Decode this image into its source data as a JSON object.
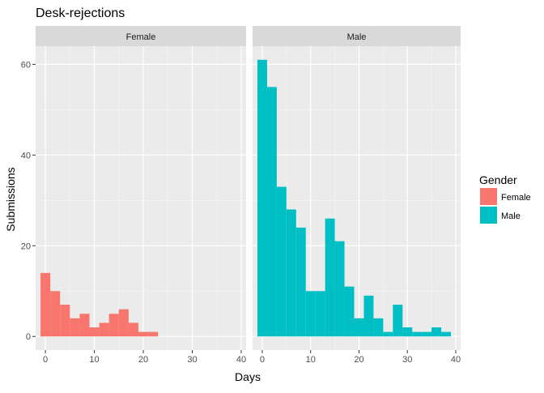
{
  "chart_data": {
    "type": "bar",
    "title": "Desk-rejections",
    "xlabel": "Days",
    "ylabel": "Submissions",
    "xlim": [
      -2,
      41
    ],
    "ylim": [
      -3,
      64
    ],
    "x_ticks": [
      0,
      10,
      20,
      30,
      40
    ],
    "y_ticks": [
      0,
      20,
      40,
      60
    ],
    "bin_width": 2,
    "grid": true,
    "legend": {
      "title": "Gender",
      "position": "right",
      "entries": [
        {
          "label": "Female",
          "color": "#F8766D"
        },
        {
          "label": "Male",
          "color": "#00BFC4"
        }
      ]
    },
    "facets": [
      {
        "name": "Female",
        "color": "#F8766D",
        "bins": [
          {
            "x": 0,
            "count": 14
          },
          {
            "x": 2,
            "count": 10
          },
          {
            "x": 4,
            "count": 7
          },
          {
            "x": 6,
            "count": 4
          },
          {
            "x": 8,
            "count": 5
          },
          {
            "x": 10,
            "count": 2
          },
          {
            "x": 12,
            "count": 3
          },
          {
            "x": 14,
            "count": 5
          },
          {
            "x": 16,
            "count": 6
          },
          {
            "x": 18,
            "count": 3
          },
          {
            "x": 20,
            "count": 1
          },
          {
            "x": 22,
            "count": 1
          }
        ]
      },
      {
        "name": "Male",
        "color": "#00BFC4",
        "bins": [
          {
            "x": 0,
            "count": 61
          },
          {
            "x": 2,
            "count": 55
          },
          {
            "x": 4,
            "count": 33
          },
          {
            "x": 6,
            "count": 28
          },
          {
            "x": 8,
            "count": 24
          },
          {
            "x": 10,
            "count": 10
          },
          {
            "x": 12,
            "count": 10
          },
          {
            "x": 14,
            "count": 26
          },
          {
            "x": 16,
            "count": 21
          },
          {
            "x": 18,
            "count": 11
          },
          {
            "x": 20,
            "count": 4
          },
          {
            "x": 22,
            "count": 9
          },
          {
            "x": 24,
            "count": 4
          },
          {
            "x": 26,
            "count": 1
          },
          {
            "x": 28,
            "count": 7
          },
          {
            "x": 30,
            "count": 2
          },
          {
            "x": 32,
            "count": 1
          },
          {
            "x": 34,
            "count": 1
          },
          {
            "x": 36,
            "count": 2
          },
          {
            "x": 38,
            "count": 1
          }
        ]
      }
    ]
  }
}
